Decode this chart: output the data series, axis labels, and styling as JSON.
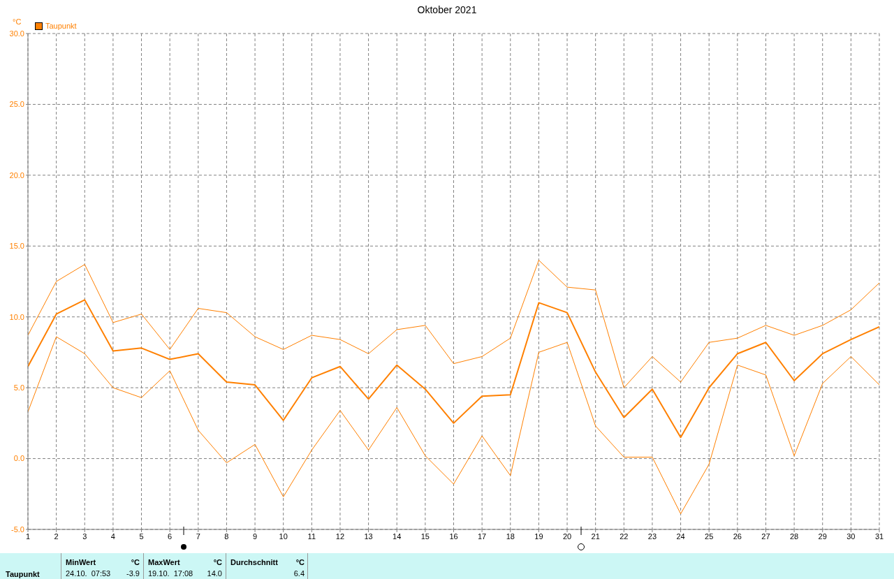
{
  "chart_data": {
    "type": "line",
    "title": "Oktober 2021",
    "ylabel": "°C",
    "x": [
      1,
      2,
      3,
      4,
      5,
      6,
      7,
      8,
      9,
      10,
      11,
      12,
      13,
      14,
      15,
      16,
      17,
      18,
      19,
      20,
      21,
      22,
      23,
      24,
      25,
      26,
      27,
      28,
      29,
      30,
      31
    ],
    "series": [
      {
        "color": "#ff8000",
        "values": [
          8.7,
          12.5,
          13.7,
          9.6,
          10.2,
          7.7,
          10.6,
          10.3,
          8.6,
          7.7,
          8.7,
          8.4,
          7.4,
          9.1,
          9.4,
          6.7,
          7.2,
          8.5,
          14.0,
          12.1,
          11.9,
          5.0,
          7.2,
          5.4,
          8.2,
          8.5,
          9.4,
          8.7,
          9.4,
          10.5,
          12.4
        ]
      },
      {
        "name": "Taupunkt",
        "color": "#ff8000",
        "values": [
          6.5,
          10.2,
          11.2,
          7.6,
          7.8,
          7.0,
          7.4,
          5.4,
          5.2,
          2.7,
          5.7,
          6.5,
          4.2,
          6.6,
          4.9,
          2.5,
          4.4,
          4.5,
          11.0,
          10.3,
          6.1,
          2.9,
          4.9,
          1.5,
          5.0,
          7.4,
          8.2,
          5.5,
          7.4,
          8.4,
          9.3
        ]
      },
      {
        "color": "#ff8000",
        "values": [
          3.3,
          8.6,
          7.4,
          5.0,
          4.3,
          6.2,
          2.0,
          -0.3,
          1.0,
          -2.7,
          0.6,
          3.4,
          0.6,
          3.6,
          0.2,
          -1.8,
          1.6,
          -1.2,
          7.5,
          8.2,
          2.3,
          0.1,
          0.1,
          -3.9,
          -0.4,
          6.6,
          5.9,
          0.2,
          5.3,
          7.2,
          5.2
        ]
      }
    ],
    "xlim": [
      1,
      31
    ],
    "xticks": [
      1,
      2,
      3,
      4,
      5,
      6,
      7,
      8,
      9,
      10,
      11,
      12,
      13,
      14,
      15,
      16,
      17,
      18,
      19,
      20,
      21,
      22,
      23,
      24,
      25,
      26,
      27,
      28,
      29,
      30,
      31
    ],
    "ylim": [
      -5,
      30
    ],
    "yticks": [
      {
        "value": -5,
        "label": "-5.0"
      },
      {
        "value": 0,
        "label": "0.0"
      },
      {
        "value": 5,
        "label": "5.0"
      },
      {
        "value": 10,
        "label": "10.0"
      },
      {
        "value": 15,
        "label": "15.0"
      },
      {
        "value": 20,
        "label": "20.0"
      },
      {
        "value": 25,
        "label": "25.0"
      },
      {
        "value": 30,
        "label": "30.0"
      }
    ],
    "grid": true,
    "line_style": "solid",
    "marker": "none",
    "legend": "top left",
    "annotations": [
      "Taupunkt",
      "MinWert",
      "°C",
      "24.10.  07:53",
      "-3.9",
      "MaxWert",
      "°C",
      "19.10.  17:08",
      "14.0",
      "Durchschnitt",
      "°C",
      "6.4"
    ]
  }
}
